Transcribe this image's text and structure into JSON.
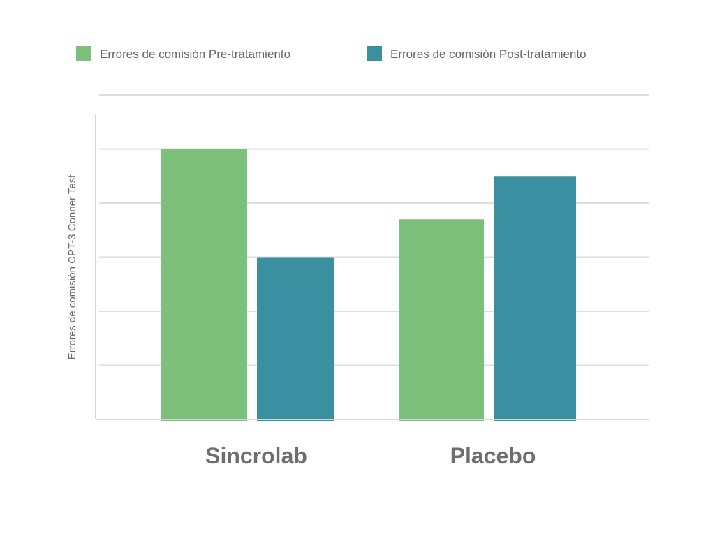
{
  "chart_data": {
    "type": "bar",
    "title": "",
    "categories": [
      "Sincrolab",
      "Placebo"
    ],
    "series": [
      {
        "name": "Errores de comisión Pre-tratamiento",
        "values": [
          5,
          3.7
        ],
        "color": "#7cc07b"
      },
      {
        "name": "Errores de comisión Post-tratamiento",
        "values": [
          3,
          4.5
        ],
        "color": "#3a8fa0"
      }
    ],
    "xlabel": "",
    "ylabel": "Errores de comisión CPT-3 Conner Test",
    "ylim": [
      0,
      6
    ],
    "grid": true,
    "show_y_tick_labels": false,
    "legend_position": "top"
  }
}
